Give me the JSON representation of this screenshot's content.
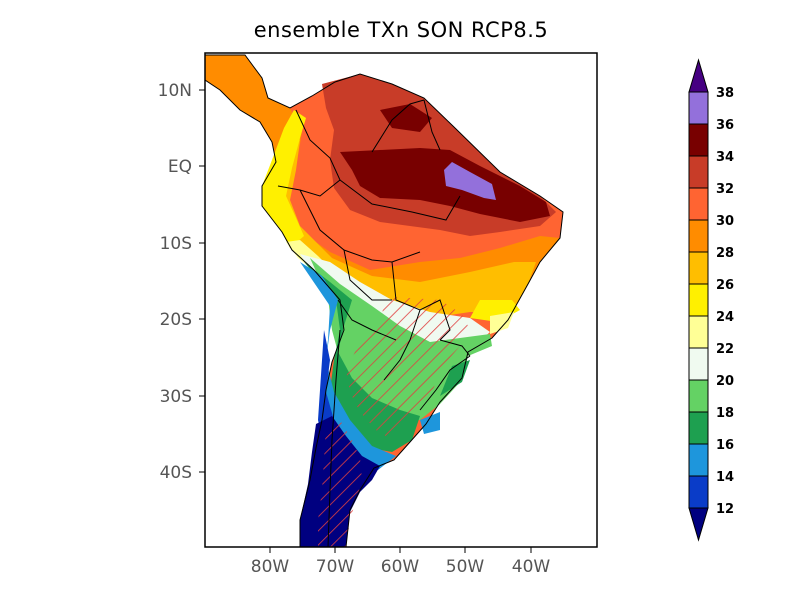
{
  "title": "ensemble TXn SON RCP8.5",
  "map": {
    "lat_labels": [
      "10N",
      "EQ",
      "10S",
      "20S",
      "30S",
      "40S"
    ],
    "lon_labels": [
      "80W",
      "70W",
      "60W",
      "50W",
      "40W"
    ],
    "extent": {
      "lon": [
        -90,
        -30
      ],
      "lat": [
        -50,
        15
      ]
    },
    "hatching_color": "#e04040"
  },
  "colorbar": {
    "labels": [
      "12",
      "14",
      "16",
      "18",
      "20",
      "22",
      "24",
      "26",
      "28",
      "30",
      "32",
      "34",
      "36",
      "38"
    ],
    "colors": [
      "#000080",
      "#0a3cc8",
      "#1e96dc",
      "#1ea050",
      "#64d264",
      "#f0faf0",
      "#ffff96",
      "#fff000",
      "#ffbe00",
      "#ff8c00",
      "#ff6432",
      "#c83c28",
      "#780000",
      "#9370db",
      "#460082"
    ],
    "under_color": "#000080",
    "over_color": "#460082"
  }
}
